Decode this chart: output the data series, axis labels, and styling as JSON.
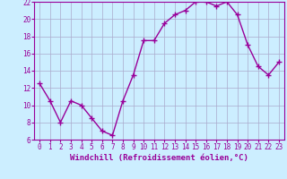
{
  "x": [
    0,
    1,
    2,
    3,
    4,
    5,
    6,
    7,
    8,
    9,
    10,
    11,
    12,
    13,
    14,
    15,
    16,
    17,
    18,
    19,
    20,
    21,
    22,
    23
  ],
  "y": [
    12.5,
    10.5,
    8.0,
    10.5,
    10.0,
    8.5,
    7.0,
    6.5,
    10.5,
    13.5,
    17.5,
    17.5,
    19.5,
    20.5,
    21.0,
    22.0,
    22.0,
    21.5,
    22.0,
    20.5,
    17.0,
    14.5,
    13.5,
    15.0
  ],
  "line_color": "#990099",
  "marker": "+",
  "marker_size": 4,
  "bg_color": "#cceeff",
  "grid_color": "#aaaacc",
  "xlabel": "Windchill (Refroidissement éolien,°C)",
  "tick_color": "#990099",
  "ylim": [
    6,
    22
  ],
  "xlim": [
    -0.5,
    23.5
  ],
  "yticks": [
    6,
    8,
    10,
    12,
    14,
    16,
    18,
    20,
    22
  ],
  "xticks": [
    0,
    1,
    2,
    3,
    4,
    5,
    6,
    7,
    8,
    9,
    10,
    11,
    12,
    13,
    14,
    15,
    16,
    17,
    18,
    19,
    20,
    21,
    22,
    23
  ],
  "linewidth": 1.0,
  "marker_linewidth": 1.0,
  "tick_fontsize": 5.5,
  "xlabel_fontsize": 6.5
}
